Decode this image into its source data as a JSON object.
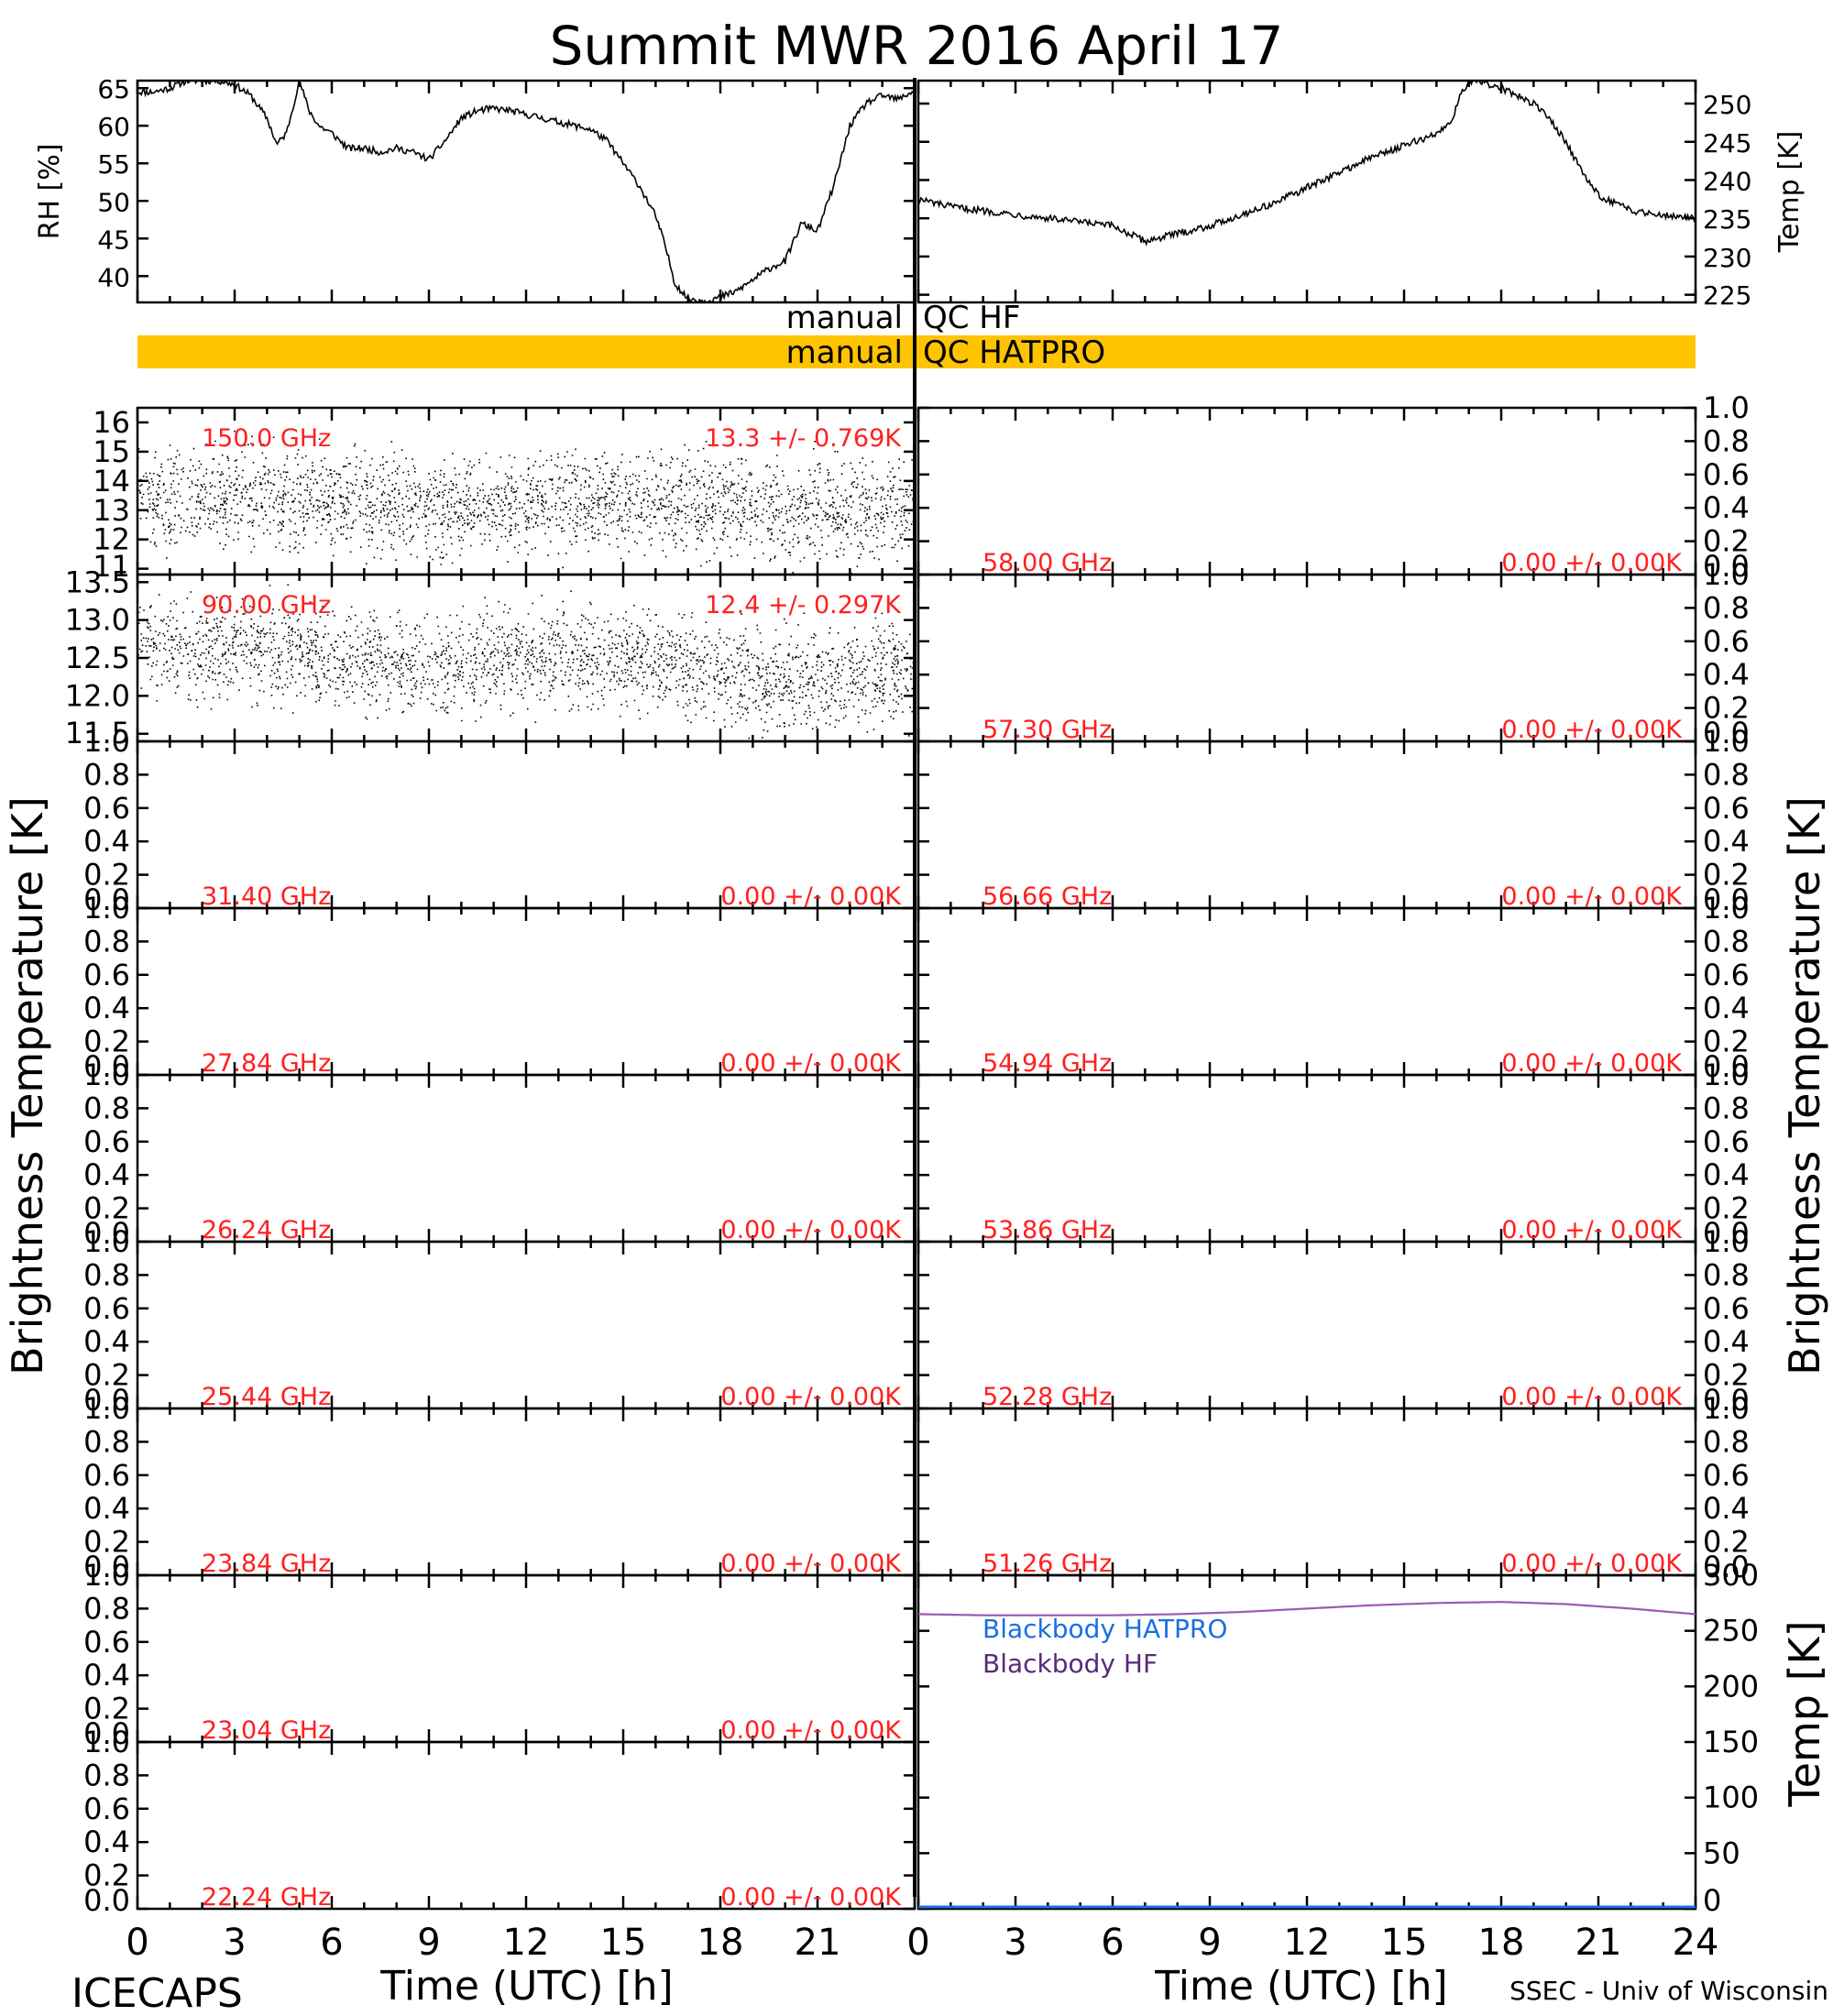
{
  "title": "Summit MWR 2016 April 17",
  "footer": {
    "left": "ICECAPS",
    "right": "SSEC - Univ of Wisconsin",
    "xlabel_left": "Time (UTC) [h]",
    "xlabel_right": "Time (UTC) [h]"
  },
  "side_labels": {
    "left": "Brightness Temperature [K]",
    "right": "Brightness Temperature [K]",
    "right_bottom": "Temp [K]"
  },
  "qc": {
    "hf_left": "manual",
    "hf_right": "QC HF",
    "hatpro_left": "manual",
    "hatpro_right": "QC HATPRO",
    "bar_color": "#ffc400"
  },
  "colors": {
    "annotation": "#ff2020",
    "series": "#000000",
    "blackbody_hatpro": "#1a6fe0",
    "blackbody_hf": "#5a2a7a",
    "blackbody_line": "#9a5ab0"
  },
  "chart_data": [
    {
      "type": "line",
      "id": "rh",
      "ylabel": "RH [%]",
      "ylim": [
        36.5,
        66
      ],
      "yticks": [
        "40",
        "45",
        "50",
        "55",
        "60",
        "65"
      ],
      "xlim": [
        0,
        24
      ],
      "x": [
        0,
        0.5,
        1,
        1.5,
        2,
        2.5,
        3,
        3.5,
        4,
        4.3,
        4.6,
        5,
        5.3,
        5.6,
        6,
        6.5,
        7,
        7.5,
        8,
        8.5,
        9,
        9.5,
        10,
        10.5,
        11,
        11.5,
        12,
        12.5,
        13,
        13.5,
        14,
        14.5,
        15,
        15.5,
        16,
        16.3,
        16.6,
        17,
        17.5,
        18,
        18.5,
        19,
        19.5,
        20,
        20.5,
        21,
        21.5,
        22,
        22.5,
        23,
        23.5,
        23.9
      ],
      "y": [
        64.5,
        64.5,
        65,
        66,
        66,
        66,
        65.5,
        64,
        61,
        57.5,
        59,
        66,
        62,
        60,
        59,
        57,
        57,
        56.5,
        57,
        56.5,
        55.5,
        58,
        61,
        62,
        62.3,
        62,
        61.5,
        61,
        60.5,
        60,
        59.5,
        58,
        55,
        52,
        48,
        44,
        39,
        37,
        36.7,
        37.2,
        38,
        39.5,
        41,
        42,
        47,
        46,
        52,
        60,
        63,
        64,
        63.5,
        64.5
      ]
    },
    {
      "type": "line",
      "id": "temp",
      "ylabel": "Temp [K]",
      "ylim": [
        224,
        253
      ],
      "yticks": [
        "225",
        "230",
        "235",
        "240",
        "245",
        "250"
      ],
      "xlim": [
        0,
        24
      ],
      "x": [
        0,
        1,
        2,
        3,
        4,
        5,
        6,
        6.5,
        7,
        7.5,
        8,
        9,
        10,
        11,
        12,
        13,
        14,
        15,
        16,
        16.5,
        16.8,
        17.2,
        18,
        18.5,
        19,
        19.5,
        20,
        20.5,
        21,
        21.5,
        22,
        23,
        24
      ],
      "y": [
        237.5,
        236.5,
        236,
        235.5,
        235,
        234.5,
        234,
        233,
        232,
        232.5,
        233,
        234,
        235.5,
        237,
        239,
        241,
        243,
        244.5,
        246,
        248,
        252,
        253,
        252,
        251,
        250,
        248,
        245,
        241,
        238,
        237,
        236,
        235.5,
        235
      ]
    },
    {
      "type": "scatter",
      "id": "tb_150",
      "label": "150.0 GHz",
      "stats": "13.3 +/- 0.769K",
      "ylim": [
        10.8,
        16.5
      ],
      "yticks": [
        "11",
        "12",
        "13",
        "14",
        "15",
        "16"
      ],
      "xlim": [
        0,
        24
      ],
      "x": [
        0,
        2,
        4,
        6,
        8,
        10,
        12,
        14,
        16,
        18,
        20,
        22,
        24
      ],
      "y": [
        13.5,
        13.4,
        13.5,
        13.3,
        13.2,
        13.1,
        13.2,
        13.3,
        13.4,
        13.2,
        13.0,
        13.1,
        13.3
      ]
    },
    {
      "type": "scatter",
      "id": "tb_90",
      "label": "90.00 GHz",
      "stats": "12.4 +/- 0.297K",
      "ylim": [
        11.4,
        13.6
      ],
      "yticks": [
        "11.5",
        "12.0",
        "12.5",
        "13.0",
        "13.5"
      ],
      "xlim": [
        0,
        24
      ],
      "x": [
        0,
        2,
        4,
        6,
        8,
        10,
        12,
        14,
        16,
        18,
        20,
        22,
        24
      ],
      "y": [
        12.7,
        12.6,
        12.65,
        12.5,
        12.4,
        12.45,
        12.55,
        12.5,
        12.45,
        12.3,
        12.2,
        12.25,
        12.4
      ]
    },
    {
      "type": "line",
      "id": "tb_58",
      "label": "58.00 GHz",
      "stats": "0.00 +/- 0.00K",
      "ylim": [
        0,
        1
      ],
      "yticks": [
        "0.0",
        "0.2",
        "0.4",
        "0.6",
        "0.8",
        "1.0"
      ]
    },
    {
      "type": "line",
      "id": "tb_5730",
      "label": "57.30 GHz",
      "stats": "0.00 +/- 0.00K",
      "ylim": [
        0,
        1
      ],
      "yticks": [
        "0.0",
        "0.2",
        "0.4",
        "0.6",
        "0.8",
        "1.0"
      ]
    },
    {
      "type": "line",
      "id": "tb_3140",
      "label": "31.40 GHz",
      "stats": "0.00 +/- 0.00K",
      "ylim": [
        0,
        1
      ],
      "yticks": [
        "0.0",
        "0.2",
        "0.4",
        "0.6",
        "0.8",
        "1.0"
      ]
    },
    {
      "type": "line",
      "id": "tb_5666",
      "label": "56.66 GHz",
      "stats": "0.00 +/- 0.00K",
      "ylim": [
        0,
        1
      ],
      "yticks": [
        "0.0",
        "0.2",
        "0.4",
        "0.6",
        "0.8",
        "1.0"
      ]
    },
    {
      "type": "line",
      "id": "tb_2784",
      "label": "27.84 GHz",
      "stats": "0.00 +/- 0.00K",
      "ylim": [
        0,
        1
      ],
      "yticks": [
        "0.0",
        "0.2",
        "0.4",
        "0.6",
        "0.8",
        "1.0"
      ]
    },
    {
      "type": "line",
      "id": "tb_5494",
      "label": "54.94 GHz",
      "stats": "0.00 +/- 0.00K",
      "ylim": [
        0,
        1
      ],
      "yticks": [
        "0.0",
        "0.2",
        "0.4",
        "0.6",
        "0.8",
        "1.0"
      ]
    },
    {
      "type": "line",
      "id": "tb_2624",
      "label": "26.24 GHz",
      "stats": "0.00 +/- 0.00K",
      "ylim": [
        0,
        1
      ],
      "yticks": [
        "0.0",
        "0.2",
        "0.4",
        "0.6",
        "0.8",
        "1.0"
      ]
    },
    {
      "type": "line",
      "id": "tb_5386",
      "label": "53.86 GHz",
      "stats": "0.00 +/- 0.00K",
      "ylim": [
        0,
        1
      ],
      "yticks": [
        "0.0",
        "0.2",
        "0.4",
        "0.6",
        "0.8",
        "1.0"
      ]
    },
    {
      "type": "line",
      "id": "tb_2544",
      "label": "25.44 GHz",
      "stats": "0.00 +/- 0.00K",
      "ylim": [
        0,
        1
      ],
      "yticks": [
        "0.0",
        "0.2",
        "0.4",
        "0.6",
        "0.8",
        "1.0"
      ]
    },
    {
      "type": "line",
      "id": "tb_5228",
      "label": "52.28 GHz",
      "stats": "0.00 +/- 0.00K",
      "ylim": [
        0,
        1
      ],
      "yticks": [
        "0.0",
        "0.2",
        "0.4",
        "0.6",
        "0.8",
        "1.0"
      ]
    },
    {
      "type": "line",
      "id": "tb_2384",
      "label": "23.84 GHz",
      "stats": "0.00 +/- 0.00K",
      "ylim": [
        0,
        1
      ],
      "yticks": [
        "0.0",
        "0.2",
        "0.4",
        "0.6",
        "0.8",
        "1.0"
      ]
    },
    {
      "type": "line",
      "id": "tb_5126",
      "label": "51.26 GHz",
      "stats": "0.00 +/- 0.00K",
      "ylim": [
        0,
        1
      ],
      "yticks": [
        "0.0",
        "0.2",
        "0.4",
        "0.6",
        "0.8",
        "1.0"
      ]
    },
    {
      "type": "line",
      "id": "tb_2304",
      "label": "23.04 GHz",
      "stats": "0.00 +/- 0.00K",
      "ylim": [
        0,
        1
      ],
      "yticks": [
        "0.0",
        "0.2",
        "0.4",
        "0.6",
        "0.8",
        "1.0"
      ]
    },
    {
      "type": "line",
      "id": "tb_2224",
      "label": "22.24 GHz",
      "stats": "0.00 +/- 0.00K",
      "ylim": [
        0,
        1
      ],
      "yticks": [
        "0.0",
        "0.2",
        "0.4",
        "0.6",
        "0.8",
        "1.0"
      ],
      "xticks": [
        "0",
        "3",
        "6",
        "9",
        "12",
        "15",
        "18",
        "21"
      ]
    },
    {
      "type": "line",
      "id": "blackbody",
      "ylabel": "Temp [K]",
      "ylim": [
        0,
        300
      ],
      "yticks": [
        "0",
        "50",
        "100",
        "150",
        "200",
        "250",
        "300"
      ],
      "xlim": [
        0,
        24
      ],
      "xticks": [
        "0",
        "3",
        "6",
        "9",
        "12",
        "15",
        "18",
        "21",
        "24"
      ],
      "legend": [
        "Blackbody HATPRO",
        "Blackbody HF"
      ],
      "series": [
        {
          "name": "Blackbody HF",
          "x": [
            0,
            2,
            4,
            6,
            8,
            10,
            12,
            14,
            16,
            18,
            20,
            22,
            24
          ],
          "y": [
            265,
            264,
            264,
            264,
            265,
            267,
            270,
            273,
            275,
            276,
            274,
            270,
            265
          ]
        },
        {
          "name": "Blackbody HATPRO",
          "x": [
            0,
            24
          ],
          "y": [
            0,
            0
          ]
        }
      ]
    }
  ]
}
